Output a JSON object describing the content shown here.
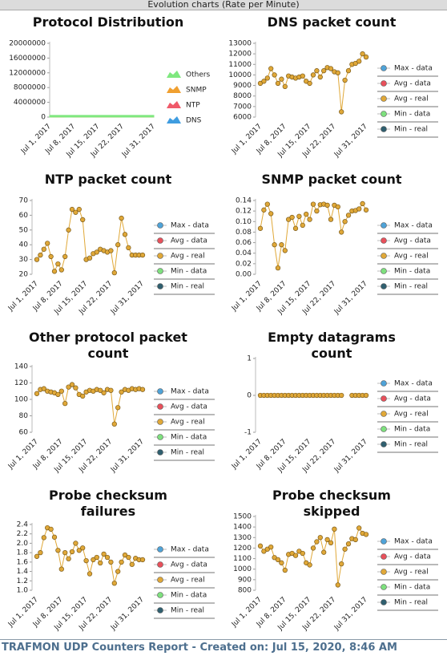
{
  "header": {
    "title": "Evolution charts (Rate per Minute)"
  },
  "footer": {
    "text": "TRAFMON UDP Counters Report - Created on: Jul 15, 2020, 8:46 AM"
  },
  "chart_data": [
    {
      "type": "area",
      "title": "Protocol Distribution",
      "categories": [
        "Jul 1, 2017",
        null,
        null,
        null,
        null,
        null,
        null,
        "Jul 8, 2017",
        null,
        null,
        null,
        null,
        null,
        null,
        "Jul 15, 2017",
        null,
        null,
        null,
        null,
        null,
        null,
        "Jul 22, 2017",
        null,
        null,
        null,
        null,
        null,
        null,
        null,
        null,
        "Jul 31, 2017"
      ],
      "ylim": [
        0,
        20000000
      ],
      "yticks": [
        0,
        4000000,
        8000000,
        12000000,
        16000000,
        20000000
      ],
      "series": [
        {
          "name": "DNS",
          "color": "#3f9de0",
          "values": [
            13200,
            13600,
            14200,
            14600,
            13800,
            13400,
            13000,
            13900,
            14000,
            13800,
            13900,
            13700,
            13100,
            13800,
            13600,
            14300,
            14500,
            14800,
            14700,
            14600,
            14400,
            9200,
            11000,
            12500,
            14800,
            15500,
            15600,
            16000,
            16200,
            16400,
            16800
          ]
        },
        {
          "name": "NTP",
          "color": "#f05a6a",
          "values": [
            30,
            33,
            37,
            41,
            32,
            22,
            27,
            23,
            32,
            50,
            64,
            62,
            64,
            57,
            30,
            31,
            34,
            35,
            37,
            36,
            35,
            36,
            21,
            40,
            58,
            47,
            38,
            33,
            33,
            33,
            33
          ]
        },
        {
          "name": "SNMP",
          "color": "#f0a030",
          "values": [
            0.087,
            0.122,
            0.133,
            0.115,
            0.056,
            0.012,
            0.056,
            0.045,
            0.104,
            0.108,
            0.087,
            0.11,
            0.093,
            0.114,
            0.104,
            0.133,
            0.12,
            0.132,
            0.133,
            0.131,
            0.104,
            0.131,
            0.128,
            0.08,
            0.1,
            0.112,
            0.12,
            0.121,
            0.124,
            0.134,
            0.122
          ]
        },
        {
          "name": "Others",
          "color": "#7fe87f",
          "values": [
            450000,
            450000,
            450000,
            450000,
            450000,
            450000,
            450000,
            450000,
            450000,
            450000,
            450000,
            450000,
            450000,
            450000,
            450000,
            450000,
            450000,
            450000,
            450000,
            450000,
            450000,
            450000,
            450000,
            450000,
            450000,
            450000,
            450000,
            450000,
            450000,
            450000,
            450000
          ]
        }
      ]
    },
    {
      "type": "line",
      "title": "DNS packet count",
      "categories": [
        "Jul 1, 2017",
        null,
        null,
        null,
        null,
        null,
        null,
        "Jul 8, 2017",
        null,
        null,
        null,
        null,
        null,
        null,
        "Jul 15, 2017",
        null,
        null,
        null,
        null,
        null,
        null,
        "Jul 22, 2017",
        null,
        null,
        null,
        null,
        null,
        null,
        null,
        null,
        "Jul 31, 2017"
      ],
      "ylim": [
        6000,
        13000
      ],
      "yticks": [
        6000,
        7000,
        8000,
        9000,
        10000,
        11000,
        12000,
        13000
      ],
      "series": [
        {
          "name": "Max - data",
          "color": "#4fa3d8"
        },
        {
          "name": "Avg - data",
          "color": "#e8505b"
        },
        {
          "name": "Avg - real",
          "color": "#e0a838",
          "values": [
            9200,
            9400,
            9700,
            10600,
            10000,
            9200,
            9600,
            8900,
            9900,
            9800,
            9700,
            9800,
            9900,
            9400,
            9200,
            10000,
            10400,
            9800,
            10400,
            10700,
            10600,
            10300,
            10200,
            6500,
            9500,
            10400,
            11000,
            11100,
            11300,
            12000,
            11700
          ]
        },
        {
          "name": "Min - data",
          "color": "#7ee07e"
        },
        {
          "name": "Min - real",
          "color": "#2f5f6f"
        }
      ]
    },
    {
      "type": "line",
      "title": "NTP packet count",
      "categories": [
        "Jul 1, 2017",
        null,
        null,
        null,
        null,
        null,
        null,
        "Jul 8, 2017",
        null,
        null,
        null,
        null,
        null,
        null,
        "Jul 15, 2017",
        null,
        null,
        null,
        null,
        null,
        null,
        "Jul 22, 2017",
        null,
        null,
        null,
        null,
        null,
        null,
        null,
        null,
        "Jul 31, 2017"
      ],
      "ylim": [
        20,
        70
      ],
      "yticks": [
        20,
        30,
        40,
        50,
        60,
        70
      ],
      "series": [
        {
          "name": "Max - data",
          "color": "#4fa3d8"
        },
        {
          "name": "Avg - data",
          "color": "#e8505b"
        },
        {
          "name": "Avg - real",
          "color": "#e0a838",
          "values": [
            30,
            33,
            37,
            41,
            32,
            22,
            27,
            23,
            32,
            50,
            64,
            62,
            64,
            57,
            30,
            31,
            34,
            35,
            37,
            36,
            35,
            36,
            21,
            40,
            58,
            47,
            38,
            33,
            33,
            33,
            33
          ]
        },
        {
          "name": "Min - data",
          "color": "#7ee07e"
        },
        {
          "name": "Min - real",
          "color": "#2f5f6f"
        }
      ]
    },
    {
      "type": "line",
      "title": "SNMP packet count",
      "categories": [
        "Jul 1, 2017",
        null,
        null,
        null,
        null,
        null,
        null,
        "Jul 8, 2017",
        null,
        null,
        null,
        null,
        null,
        null,
        "Jul 15, 2017",
        null,
        null,
        null,
        null,
        null,
        null,
        "Jul 22, 2017",
        null,
        null,
        null,
        null,
        null,
        null,
        null,
        null,
        "Jul 31, 2017"
      ],
      "ylim": [
        0,
        0.14
      ],
      "yticks": [
        {
          "value": 0,
          "label": "0.00"
        },
        {
          "value": 0.02,
          "label": "0.02"
        },
        {
          "value": 0.04,
          "label": "0.04"
        },
        {
          "value": 0.06,
          "label": "0.06"
        },
        {
          "value": 0.08,
          "label": "0.08"
        },
        {
          "value": 0.1,
          "label": "0.10"
        },
        {
          "value": 0.12,
          "label": "0.12"
        },
        {
          "value": 0.14,
          "label": "0.14"
        }
      ],
      "series": [
        {
          "name": "Max - data",
          "color": "#4fa3d8"
        },
        {
          "name": "Avg - data",
          "color": "#e8505b"
        },
        {
          "name": "Avg - real",
          "color": "#e0a838",
          "values": [
            0.087,
            0.122,
            0.133,
            0.115,
            0.056,
            0.012,
            0.056,
            0.045,
            0.104,
            0.108,
            0.087,
            0.11,
            0.093,
            0.114,
            0.104,
            0.133,
            0.12,
            0.132,
            0.133,
            0.131,
            0.104,
            0.131,
            0.128,
            0.08,
            0.1,
            0.112,
            0.12,
            0.121,
            0.124,
            0.134,
            0.122
          ]
        },
        {
          "name": "Min - data",
          "color": "#7ee07e"
        },
        {
          "name": "Min - real",
          "color": "#2f5f6f"
        }
      ]
    },
    {
      "type": "line",
      "title": "Other protocol packet count",
      "categories": [
        "Jul 1, 2017",
        null,
        null,
        null,
        null,
        null,
        null,
        "Jul 8, 2017",
        null,
        null,
        null,
        null,
        null,
        null,
        "Jul 15, 2017",
        null,
        null,
        null,
        null,
        null,
        null,
        "Jul 22, 2017",
        null,
        null,
        null,
        null,
        null,
        null,
        null,
        null,
        "Jul 31, 2017"
      ],
      "ylim": [
        60,
        140
      ],
      "yticks": [
        60,
        80,
        100,
        120,
        140
      ],
      "series": [
        {
          "name": "Max - data",
          "color": "#4fa3d8"
        },
        {
          "name": "Avg - data",
          "color": "#e8505b"
        },
        {
          "name": "Avg - real",
          "color": "#e0a838",
          "values": [
            107,
            112,
            113,
            110,
            109,
            108,
            106,
            110,
            95,
            115,
            118,
            114,
            106,
            104,
            109,
            111,
            110,
            112,
            111,
            108,
            112,
            111,
            70,
            90,
            109,
            112,
            111,
            113,
            112,
            113,
            112
          ]
        },
        {
          "name": "Min - data",
          "color": "#7ee07e"
        },
        {
          "name": "Min - real",
          "color": "#2f5f6f"
        }
      ]
    },
    {
      "type": "line",
      "title": "Empty datagrams count",
      "categories": [
        "Jul 1, 2017",
        null,
        null,
        null,
        null,
        null,
        null,
        "Jul 8, 2017",
        null,
        null,
        null,
        null,
        null,
        null,
        "Jul 15, 2017",
        null,
        null,
        null,
        null,
        null,
        null,
        "Jul 22, 2017",
        null,
        null,
        null,
        null,
        null,
        null,
        null,
        null,
        "Jul 31, 2017"
      ],
      "ylim": [
        -1,
        1
      ],
      "yticks": [
        -1,
        0,
        1
      ],
      "series": [
        {
          "name": "Max - data",
          "color": "#4fa3d8"
        },
        {
          "name": "Avg - data",
          "color": "#e8505b"
        },
        {
          "name": "Avg - real",
          "color": "#e0a838",
          "values": [
            0,
            0,
            0,
            0,
            0,
            0,
            0,
            0,
            0,
            0,
            0,
            0,
            0,
            0,
            0,
            0,
            0,
            0,
            0,
            0,
            0,
            0,
            0,
            0,
            null,
            null,
            0,
            0,
            0,
            0,
            0
          ]
        },
        {
          "name": "Min - data",
          "color": "#7ee07e"
        },
        {
          "name": "Min - real",
          "color": "#2f5f6f"
        }
      ]
    },
    {
      "type": "line",
      "title": "Probe checksum failures",
      "categories": [
        "Jul 1, 2017",
        null,
        null,
        null,
        null,
        null,
        null,
        "Jul 8, 2017",
        null,
        null,
        null,
        null,
        null,
        null,
        "Jul 15, 2017",
        null,
        null,
        null,
        null,
        null,
        null,
        "Jul 22, 2017",
        null,
        null,
        null,
        null,
        null,
        null,
        null,
        null,
        "Jul 31, 2017"
      ],
      "ylim": [
        1.0,
        2.4
      ],
      "yticks": [
        {
          "value": 1.0,
          "label": "1.0"
        },
        1.2,
        1.4,
        1.6,
        1.8,
        {
          "value": 2.0,
          "label": "2.0"
        },
        2.2,
        2.4
      ],
      "series": [
        {
          "name": "Max - data",
          "color": "#4fa3d8"
        },
        {
          "name": "Avg - data",
          "color": "#e8505b"
        },
        {
          "name": "Avg - real",
          "color": "#e0a838",
          "values": [
            1.72,
            1.8,
            2.12,
            2.33,
            2.3,
            2.13,
            1.85,
            1.45,
            1.8,
            1.67,
            1.82,
            2.0,
            1.85,
            1.9,
            1.63,
            1.35,
            1.65,
            1.7,
            1.58,
            1.77,
            1.7,
            1.6,
            1.15,
            1.4,
            1.6,
            1.75,
            1.7,
            1.55,
            1.68,
            1.65,
            1.65
          ]
        },
        {
          "name": "Min - data",
          "color": "#7ee07e"
        },
        {
          "name": "Min - real",
          "color": "#2f5f6f"
        }
      ]
    },
    {
      "type": "line",
      "title": "Probe checksum skipped",
      "categories": [
        "Jul 1, 2017",
        null,
        null,
        null,
        null,
        null,
        null,
        "Jul 8, 2017",
        null,
        null,
        null,
        null,
        null,
        null,
        "Jul 15, 2017",
        null,
        null,
        null,
        null,
        null,
        null,
        "Jul 22, 2017",
        null,
        null,
        null,
        null,
        null,
        null,
        null,
        null,
        "Jul 31, 2017"
      ],
      "ylim": [
        800,
        1500
      ],
      "yticks": [
        800,
        900,
        1000,
        1100,
        1200,
        1300,
        1400,
        1500
      ],
      "series": [
        {
          "name": "Max - data",
          "color": "#4fa3d8"
        },
        {
          "name": "Avg - data",
          "color": "#e8505b"
        },
        {
          "name": "Avg - real",
          "color": "#e0a838",
          "values": [
            1220,
            1170,
            1190,
            1210,
            1110,
            1090,
            1060,
            990,
            1140,
            1150,
            1130,
            1170,
            1150,
            1060,
            1040,
            1200,
            1260,
            1300,
            1160,
            1280,
            1250,
            1380,
            850,
            1050,
            1190,
            1240,
            1290,
            1280,
            1390,
            1340,
            1330
          ]
        },
        {
          "name": "Min - data",
          "color": "#7ee07e"
        },
        {
          "name": "Min - real",
          "color": "#2f5f6f"
        }
      ]
    }
  ]
}
